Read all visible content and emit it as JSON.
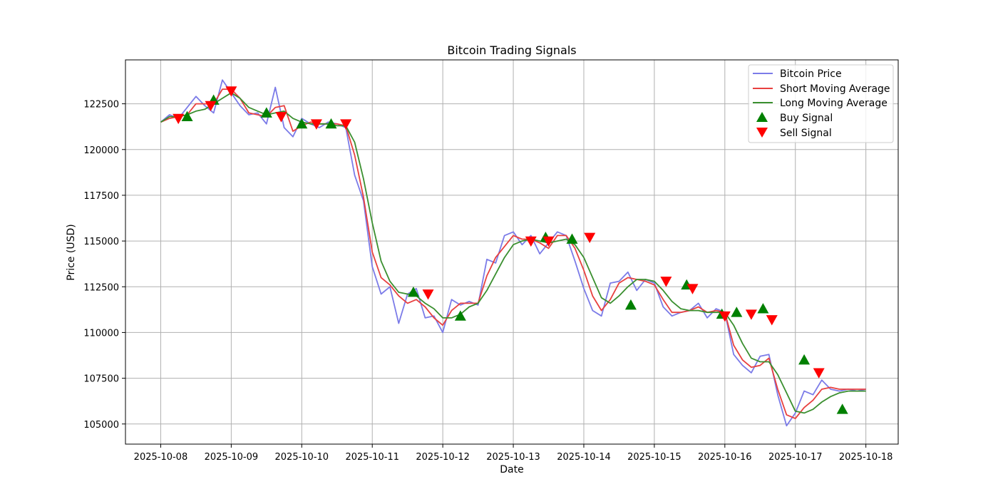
{
  "chart_data": {
    "type": "line",
    "title": "Bitcoin Trading Signals",
    "xlabel": "Date",
    "ylabel": "Price (USD)",
    "x_ticks": [
      "2025-10-08",
      "2025-10-09",
      "2025-10-10",
      "2025-10-11",
      "2025-10-12",
      "2025-10-13",
      "2025-10-14",
      "2025-10-15",
      "2025-10-16",
      "2025-10-17",
      "2025-10-18"
    ],
    "y_ticks": [
      105000,
      107500,
      110000,
      112500,
      115000,
      117500,
      120000,
      122500
    ],
    "xlim": [
      "2025-10-07 12:00",
      "2025-10-18 11:00"
    ],
    "ylim": [
      103900,
      124900
    ],
    "grid": true,
    "legend_position": "top-right",
    "colors": {
      "price": "#7b7be8",
      "short_ma": "#e8403f",
      "long_ma": "#3a8f2f",
      "buy": "#008000",
      "sell": "#ff0000",
      "grid": "#b0b0b0"
    },
    "series": [
      {
        "name": "Bitcoin Price",
        "x": [
          "2025-10-08 00:00",
          "2025-10-08 03:00",
          "2025-10-08 06:00",
          "2025-10-08 09:00",
          "2025-10-08 12:00",
          "2025-10-08 15:00",
          "2025-10-08 18:00",
          "2025-10-08 21:00",
          "2025-10-09 00:00",
          "2025-10-09 03:00",
          "2025-10-09 06:00",
          "2025-10-09 09:00",
          "2025-10-09 12:00",
          "2025-10-09 15:00",
          "2025-10-09 18:00",
          "2025-10-09 21:00",
          "2025-10-10 00:00",
          "2025-10-10 03:00",
          "2025-10-10 06:00",
          "2025-10-10 09:00",
          "2025-10-10 12:00",
          "2025-10-10 15:00",
          "2025-10-10 18:00",
          "2025-10-10 21:00",
          "2025-10-11 00:00",
          "2025-10-11 03:00",
          "2025-10-11 06:00",
          "2025-10-11 09:00",
          "2025-10-11 12:00",
          "2025-10-11 15:00",
          "2025-10-11 18:00",
          "2025-10-11 21:00",
          "2025-10-12 00:00",
          "2025-10-12 03:00",
          "2025-10-12 06:00",
          "2025-10-12 09:00",
          "2025-10-12 12:00",
          "2025-10-12 15:00",
          "2025-10-12 18:00",
          "2025-10-12 21:00",
          "2025-10-13 00:00",
          "2025-10-13 03:00",
          "2025-10-13 06:00",
          "2025-10-13 09:00",
          "2025-10-13 12:00",
          "2025-10-13 15:00",
          "2025-10-13 18:00",
          "2025-10-13 21:00",
          "2025-10-14 00:00",
          "2025-10-14 03:00",
          "2025-10-14 06:00",
          "2025-10-14 09:00",
          "2025-10-14 12:00",
          "2025-10-14 15:00",
          "2025-10-14 18:00",
          "2025-10-14 21:00",
          "2025-10-15 00:00",
          "2025-10-15 03:00",
          "2025-10-15 06:00",
          "2025-10-15 09:00",
          "2025-10-15 12:00",
          "2025-10-15 15:00",
          "2025-10-15 18:00",
          "2025-10-15 21:00",
          "2025-10-16 00:00",
          "2025-10-16 03:00",
          "2025-10-16 06:00",
          "2025-10-16 09:00",
          "2025-10-16 12:00",
          "2025-10-16 15:00",
          "2025-10-16 18:00",
          "2025-10-16 21:00",
          "2025-10-17 00:00",
          "2025-10-17 03:00",
          "2025-10-17 06:00",
          "2025-10-17 09:00",
          "2025-10-17 12:00",
          "2025-10-17 15:00",
          "2025-10-17 18:00",
          "2025-10-17 21:00",
          "2025-10-18 00:00"
        ],
        "values": [
          121500,
          121900,
          121700,
          122300,
          122900,
          122400,
          122000,
          123800,
          123100,
          122400,
          121900,
          122000,
          121400,
          123400,
          121200,
          120700,
          121700,
          121400,
          121200,
          121500,
          121400,
          121200,
          118600,
          117200,
          113600,
          112100,
          112500,
          110500,
          112100,
          112400,
          110800,
          110900,
          110000,
          111800,
          111500,
          111700,
          111500,
          114000,
          113800,
          115300,
          115500,
          114800,
          115300,
          114300,
          114900,
          115500,
          115300,
          113900,
          112400,
          111200,
          110900,
          112700,
          112800,
          113300,
          112300,
          112900,
          112700,
          111400,
          110900,
          111100,
          111200,
          111600,
          110800,
          111300,
          111100,
          108800,
          108200,
          107800,
          108700,
          108800,
          106600,
          104900,
          105600,
          106800,
          106600,
          107400,
          106900,
          106800,
          106900,
          106800,
          106900
        ]
      },
      {
        "name": "Short Moving Average",
        "x": [
          "2025-10-08 00:00",
          "2025-10-08 03:00",
          "2025-10-08 06:00",
          "2025-10-08 09:00",
          "2025-10-08 12:00",
          "2025-10-08 15:00",
          "2025-10-08 18:00",
          "2025-10-08 21:00",
          "2025-10-09 00:00",
          "2025-10-09 03:00",
          "2025-10-09 06:00",
          "2025-10-09 09:00",
          "2025-10-09 12:00",
          "2025-10-09 15:00",
          "2025-10-09 18:00",
          "2025-10-09 21:00",
          "2025-10-10 00:00",
          "2025-10-10 03:00",
          "2025-10-10 06:00",
          "2025-10-10 09:00",
          "2025-10-10 12:00",
          "2025-10-10 15:00",
          "2025-10-10 18:00",
          "2025-10-10 21:00",
          "2025-10-11 00:00",
          "2025-10-11 03:00",
          "2025-10-11 06:00",
          "2025-10-11 09:00",
          "2025-10-11 12:00",
          "2025-10-11 15:00",
          "2025-10-11 18:00",
          "2025-10-11 21:00",
          "2025-10-12 00:00",
          "2025-10-12 03:00",
          "2025-10-12 06:00",
          "2025-10-12 09:00",
          "2025-10-12 12:00",
          "2025-10-12 15:00",
          "2025-10-12 18:00",
          "2025-10-12 21:00",
          "2025-10-13 00:00",
          "2025-10-13 03:00",
          "2025-10-13 06:00",
          "2025-10-13 09:00",
          "2025-10-13 12:00",
          "2025-10-13 15:00",
          "2025-10-13 18:00",
          "2025-10-13 21:00",
          "2025-10-14 00:00",
          "2025-10-14 03:00",
          "2025-10-14 06:00",
          "2025-10-14 09:00",
          "2025-10-14 12:00",
          "2025-10-14 15:00",
          "2025-10-14 18:00",
          "2025-10-14 21:00",
          "2025-10-15 00:00",
          "2025-10-15 03:00",
          "2025-10-15 06:00",
          "2025-10-15 09:00",
          "2025-10-15 12:00",
          "2025-10-15 15:00",
          "2025-10-15 18:00",
          "2025-10-15 21:00",
          "2025-10-16 00:00",
          "2025-10-16 03:00",
          "2025-10-16 06:00",
          "2025-10-16 09:00",
          "2025-10-16 12:00",
          "2025-10-16 15:00",
          "2025-10-16 18:00",
          "2025-10-16 21:00",
          "2025-10-17 00:00",
          "2025-10-17 03:00",
          "2025-10-17 06:00",
          "2025-10-17 09:00",
          "2025-10-17 12:00",
          "2025-10-17 15:00",
          "2025-10-17 18:00",
          "2025-10-17 21:00",
          "2025-10-18 00:00"
        ],
        "values": [
          121500,
          121700,
          121800,
          121900,
          122500,
          122500,
          122500,
          123300,
          123300,
          122800,
          122000,
          121900,
          121800,
          122300,
          122400,
          121000,
          121300,
          121500,
          121400,
          121400,
          121400,
          121300,
          119700,
          117400,
          114400,
          113000,
          112600,
          112000,
          111600,
          111800,
          111400,
          110800,
          110400,
          111200,
          111600,
          111600,
          111600,
          113100,
          114100,
          114700,
          115300,
          115100,
          115100,
          114900,
          114600,
          115300,
          115300,
          114600,
          113400,
          112000,
          111200,
          111800,
          112700,
          113000,
          112900,
          112800,
          112600,
          111800,
          111100,
          111100,
          111200,
          111400,
          111100,
          111200,
          111100,
          109300,
          108500,
          108100,
          108200,
          108600,
          106900,
          105500,
          105300,
          105900,
          106300,
          106900,
          107000,
          106900,
          106900,
          106900,
          106900
        ]
      },
      {
        "name": "Long Moving Average",
        "x": [
          "2025-10-08 00:00",
          "2025-10-08 03:00",
          "2025-10-08 06:00",
          "2025-10-08 09:00",
          "2025-10-08 12:00",
          "2025-10-08 15:00",
          "2025-10-08 18:00",
          "2025-10-08 21:00",
          "2025-10-09 00:00",
          "2025-10-09 03:00",
          "2025-10-09 06:00",
          "2025-10-09 09:00",
          "2025-10-09 12:00",
          "2025-10-09 15:00",
          "2025-10-09 18:00",
          "2025-10-09 21:00",
          "2025-10-10 00:00",
          "2025-10-10 03:00",
          "2025-10-10 06:00",
          "2025-10-10 09:00",
          "2025-10-10 12:00",
          "2025-10-10 15:00",
          "2025-10-10 18:00",
          "2025-10-10 21:00",
          "2025-10-11 00:00",
          "2025-10-11 03:00",
          "2025-10-11 06:00",
          "2025-10-11 09:00",
          "2025-10-11 12:00",
          "2025-10-11 15:00",
          "2025-10-11 18:00",
          "2025-10-11 21:00",
          "2025-10-12 00:00",
          "2025-10-12 03:00",
          "2025-10-12 06:00",
          "2025-10-12 09:00",
          "2025-10-12 12:00",
          "2025-10-12 15:00",
          "2025-10-12 18:00",
          "2025-10-12 21:00",
          "2025-10-13 00:00",
          "2025-10-13 03:00",
          "2025-10-13 06:00",
          "2025-10-13 09:00",
          "2025-10-13 12:00",
          "2025-10-13 15:00",
          "2025-10-13 18:00",
          "2025-10-13 21:00",
          "2025-10-14 00:00",
          "2025-10-14 03:00",
          "2025-10-14 06:00",
          "2025-10-14 09:00",
          "2025-10-14 12:00",
          "2025-10-14 15:00",
          "2025-10-14 18:00",
          "2025-10-14 21:00",
          "2025-10-15 00:00",
          "2025-10-15 03:00",
          "2025-10-15 06:00",
          "2025-10-15 09:00",
          "2025-10-15 12:00",
          "2025-10-15 15:00",
          "2025-10-15 18:00",
          "2025-10-15 21:00",
          "2025-10-16 00:00",
          "2025-10-16 03:00",
          "2025-10-16 06:00",
          "2025-10-16 09:00",
          "2025-10-16 12:00",
          "2025-10-16 15:00",
          "2025-10-16 18:00",
          "2025-10-16 21:00",
          "2025-10-17 00:00",
          "2025-10-17 03:00",
          "2025-10-17 06:00",
          "2025-10-17 09:00",
          "2025-10-17 12:00",
          "2025-10-17 15:00",
          "2025-10-17 18:00",
          "2025-10-17 21:00",
          "2025-10-18 00:00"
        ],
        "values": [
          121500,
          121800,
          121800,
          121900,
          122100,
          122200,
          122500,
          122800,
          123100,
          122800,
          122300,
          122100,
          121900,
          122000,
          122100,
          121700,
          121500,
          121400,
          121400,
          121400,
          121300,
          121300,
          120400,
          118400,
          116000,
          113900,
          112800,
          112200,
          112100,
          112000,
          111600,
          111300,
          110800,
          110800,
          111000,
          111400,
          111600,
          112300,
          113200,
          114100,
          114800,
          115000,
          115100,
          115000,
          114900,
          115000,
          115100,
          114800,
          114100,
          113000,
          111900,
          111600,
          112000,
          112500,
          112900,
          112900,
          112800,
          112300,
          111700,
          111300,
          111200,
          111200,
          111100,
          111100,
          111100,
          110400,
          109400,
          108600,
          108400,
          108400,
          107700,
          106700,
          105700,
          105600,
          105800,
          106200,
          106500,
          106700,
          106800,
          106800,
          106800
        ]
      }
    ],
    "buy_signals": {
      "name": "Buy Signal",
      "points": [
        {
          "x": "2025-10-08 09:00",
          "y": 121800
        },
        {
          "x": "2025-10-08 18:00",
          "y": 122700
        },
        {
          "x": "2025-10-09 12:00",
          "y": 122000
        },
        {
          "x": "2025-10-10 00:00",
          "y": 121400
        },
        {
          "x": "2025-10-10 10:00",
          "y": 121400
        },
        {
          "x": "2025-10-11 14:00",
          "y": 112200
        },
        {
          "x": "2025-10-12 06:00",
          "y": 110900
        },
        {
          "x": "2025-10-13 11:00",
          "y": 115200
        },
        {
          "x": "2025-10-13 20:00",
          "y": 115100
        },
        {
          "x": "2025-10-14 16:00",
          "y": 111500
        },
        {
          "x": "2025-10-15 11:00",
          "y": 112600
        },
        {
          "x": "2025-10-15 23:00",
          "y": 111000
        },
        {
          "x": "2025-10-16 04:00",
          "y": 111100
        },
        {
          "x": "2025-10-16 13:00",
          "y": 111300
        },
        {
          "x": "2025-10-17 03:00",
          "y": 108500
        },
        {
          "x": "2025-10-17 16:00",
          "y": 105800
        }
      ]
    },
    "sell_signals": {
      "name": "Sell Signal",
      "points": [
        {
          "x": "2025-10-08 06:00",
          "y": 121700
        },
        {
          "x": "2025-10-08 17:00",
          "y": 122400
        },
        {
          "x": "2025-10-09 00:00",
          "y": 123200
        },
        {
          "x": "2025-10-09 17:00",
          "y": 121800
        },
        {
          "x": "2025-10-10 05:00",
          "y": 121400
        },
        {
          "x": "2025-10-10 15:00",
          "y": 121400
        },
        {
          "x": "2025-10-11 19:00",
          "y": 112100
        },
        {
          "x": "2025-10-13 06:00",
          "y": 115000
        },
        {
          "x": "2025-10-13 12:00",
          "y": 115000
        },
        {
          "x": "2025-10-14 02:00",
          "y": 115200
        },
        {
          "x": "2025-10-15 04:00",
          "y": 112800
        },
        {
          "x": "2025-10-15 13:00",
          "y": 112400
        },
        {
          "x": "2025-10-16 00:00",
          "y": 110900
        },
        {
          "x": "2025-10-16 09:00",
          "y": 111000
        },
        {
          "x": "2025-10-16 16:00",
          "y": 110700
        },
        {
          "x": "2025-10-17 08:00",
          "y": 107800
        }
      ]
    }
  }
}
